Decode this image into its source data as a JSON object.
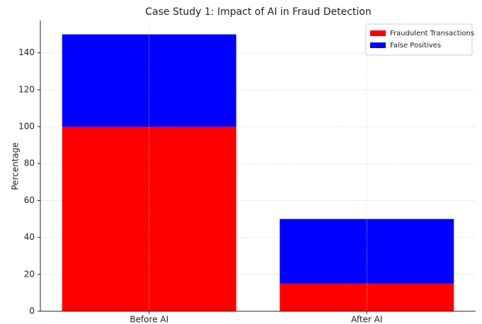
{
  "chart_data": {
    "type": "stacked_bar",
    "title": "Case Study 1: Impact of AI in Fraud Detection",
    "y_label": "Percentage",
    "categories": [
      "Before AI",
      "After AI"
    ],
    "series": [
      {
        "name": "Fraudulent Transactions",
        "color": "#ff0000",
        "values": [
          100,
          15
        ]
      },
      {
        "name": "False Positives",
        "color": "#0000ff",
        "values": [
          50,
          35
        ]
      }
    ],
    "ylim": [
      0,
      157.5
    ],
    "yticks": [
      0,
      20,
      40,
      60,
      80,
      100,
      120,
      140
    ],
    "grid": true,
    "legend": "upper right"
  }
}
